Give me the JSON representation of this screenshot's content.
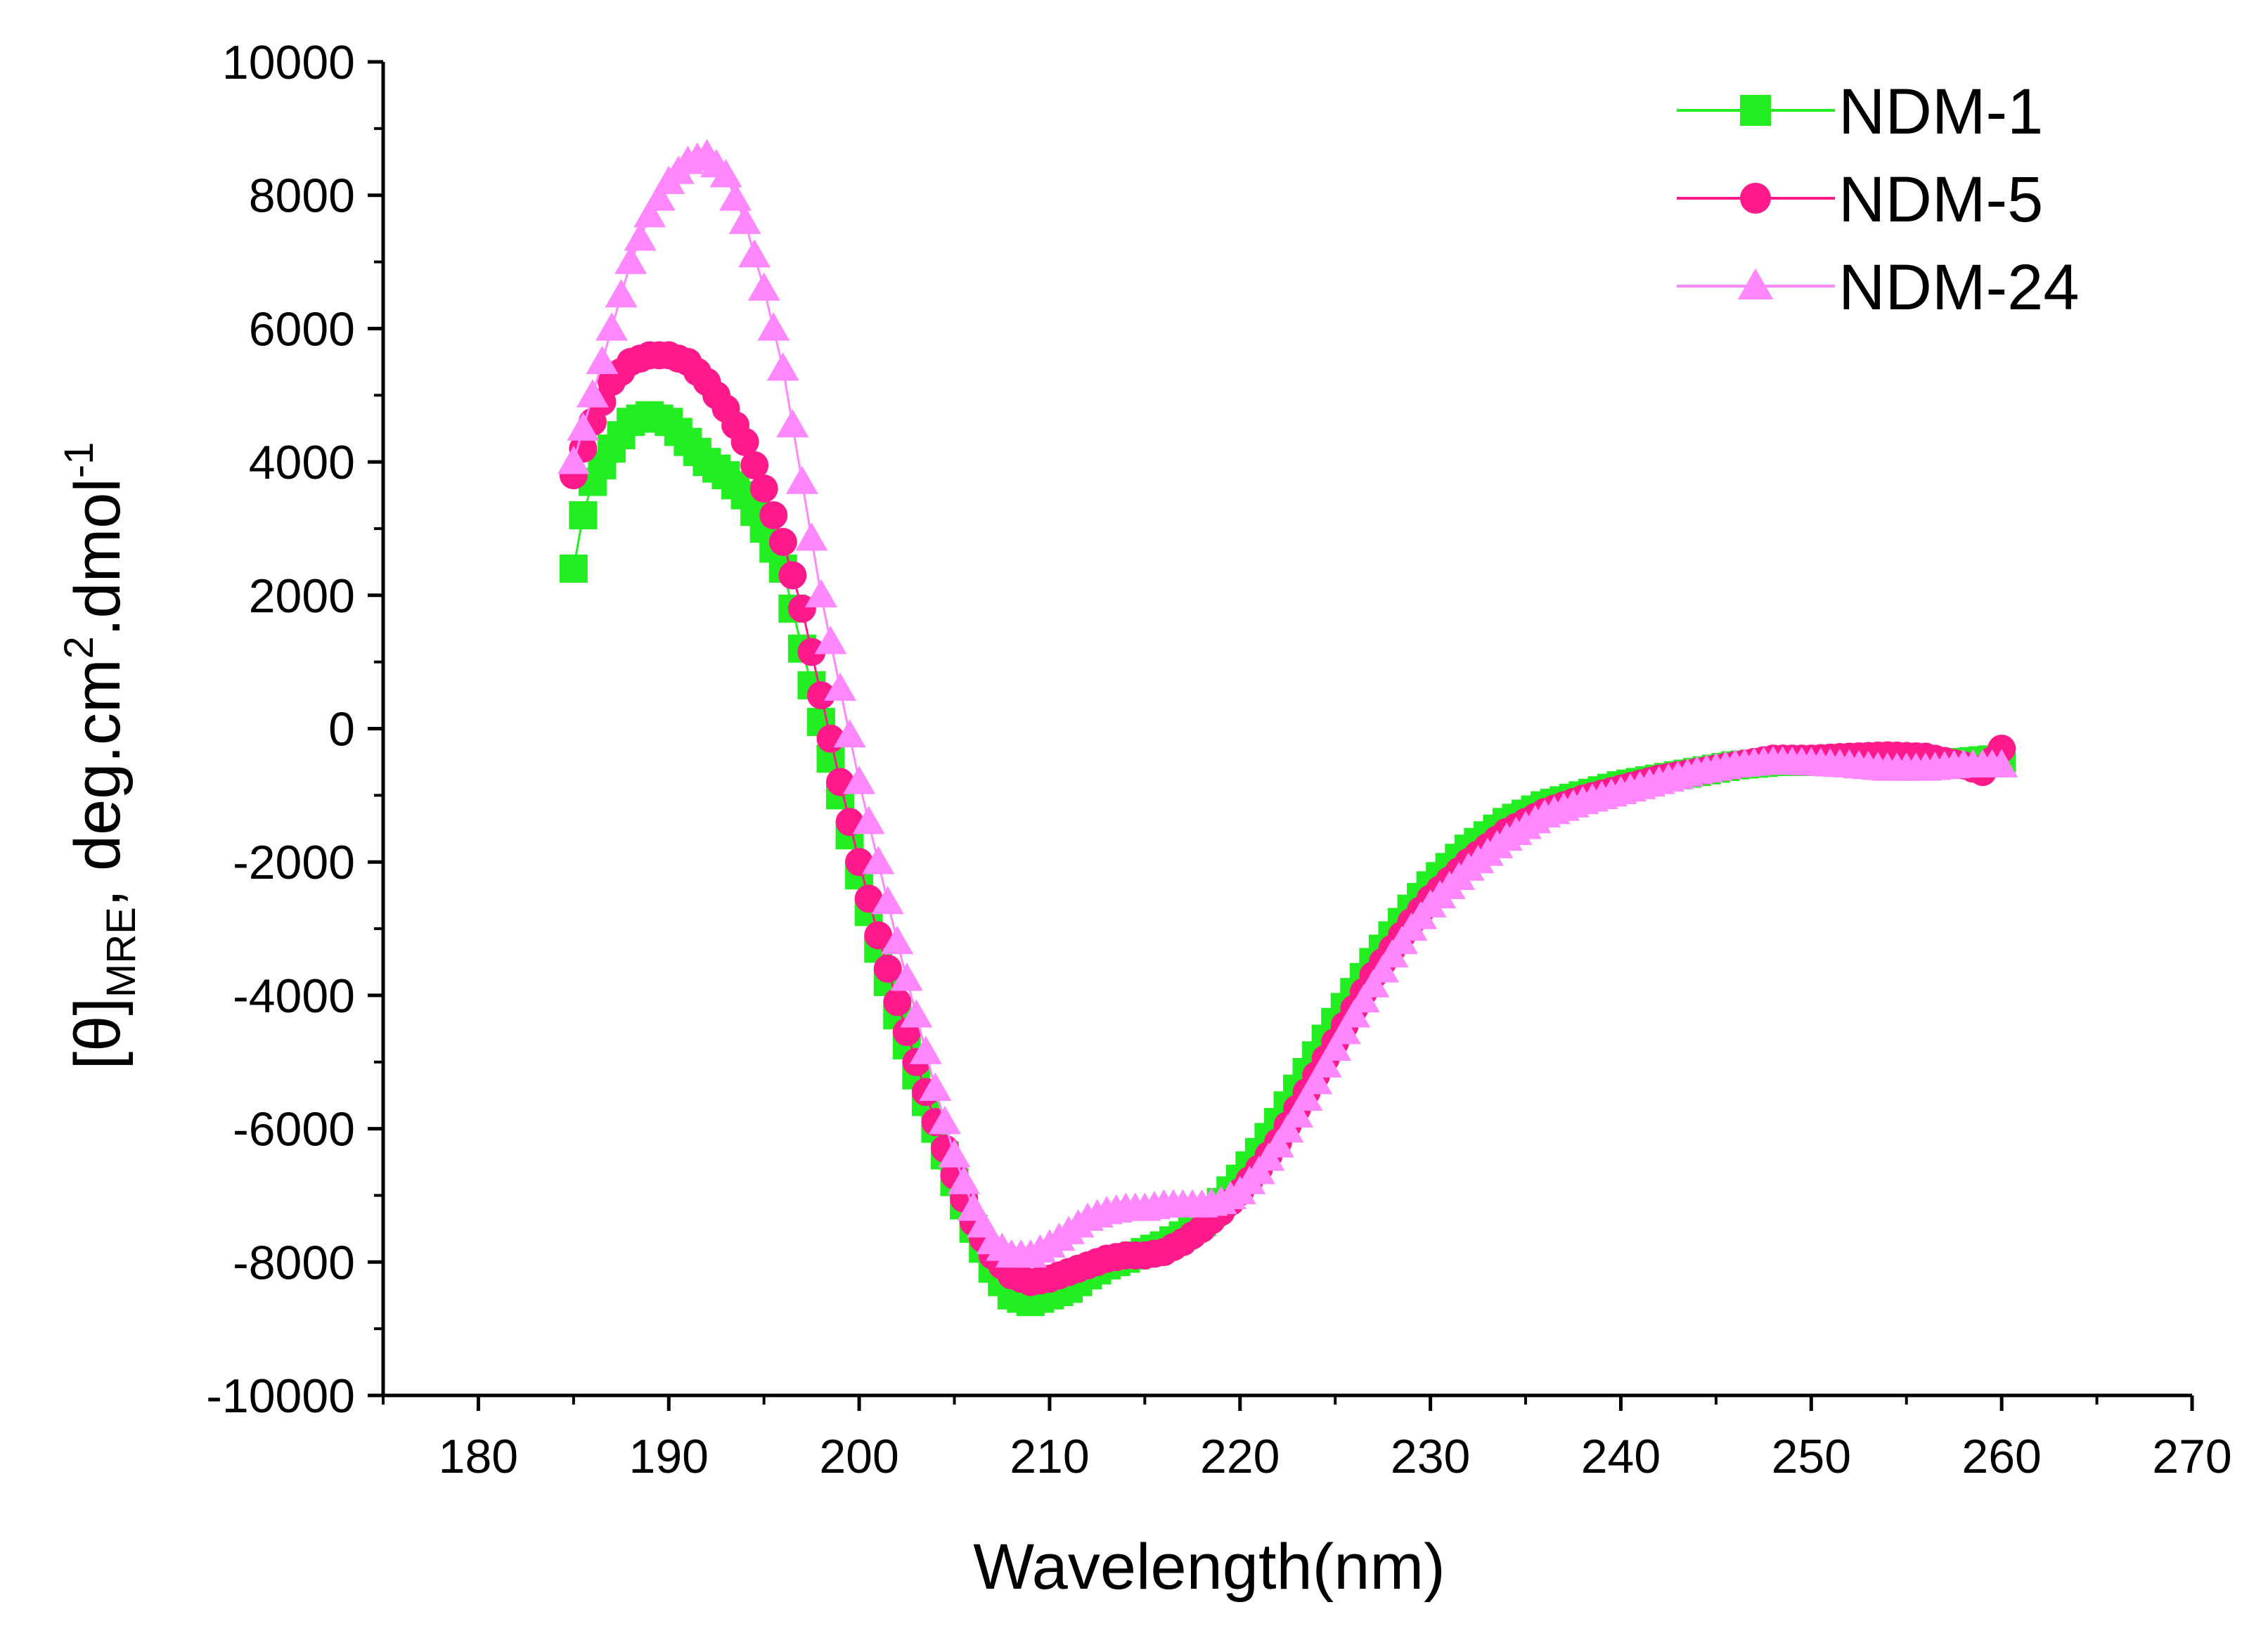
{
  "chart_data": {
    "type": "scatter",
    "title": "",
    "xlabel": "Wavelength(nm)",
    "ylabel": {
      "open": "[θ]",
      "sub": "MRE",
      "mid1": ", deg.cm",
      "sup1": "2",
      "mid2": ".dmol",
      "sup2": "-1"
    },
    "xlim": [
      175,
      270
    ],
    "ylim": [
      -10000,
      10000
    ],
    "xticks": [
      180,
      190,
      200,
      210,
      220,
      230,
      240,
      250,
      260,
      270
    ],
    "yticks": [
      -10000,
      -8000,
      -6000,
      -4000,
      -2000,
      0,
      2000,
      4000,
      6000,
      8000,
      10000
    ],
    "xtick_labels": [
      "180",
      "190",
      "200",
      "210",
      "220",
      "230",
      "240",
      "250",
      "260",
      "270"
    ],
    "ytick_labels": [
      "-10000",
      "-8000",
      "-6000",
      "-4000",
      "-2000",
      "0",
      "2000",
      "4000",
      "6000",
      "8000",
      "10000"
    ],
    "x_step": 0.5,
    "legend_position": "top-right",
    "series": [
      {
        "name": "NDM-1",
        "color": "#22ee22",
        "marker": "square",
        "anchors": [
          [
            185,
            2400
          ],
          [
            185.5,
            3200
          ],
          [
            186,
            3700
          ],
          [
            187,
            4200
          ],
          [
            188,
            4600
          ],
          [
            189,
            4700
          ],
          [
            190,
            4600
          ],
          [
            191,
            4300
          ],
          [
            192,
            4000
          ],
          [
            193,
            3800
          ],
          [
            194,
            3500
          ],
          [
            195,
            3000
          ],
          [
            196,
            2400
          ],
          [
            197,
            1200
          ],
          [
            198,
            100
          ],
          [
            199,
            -1000
          ],
          [
            200,
            -2200
          ],
          [
            201,
            -3300
          ],
          [
            202,
            -4300
          ],
          [
            203,
            -5200
          ],
          [
            204,
            -6000
          ],
          [
            205,
            -6800
          ],
          [
            206,
            -7500
          ],
          [
            207,
            -8100
          ],
          [
            208,
            -8500
          ],
          [
            209,
            -8600
          ],
          [
            210,
            -8500
          ],
          [
            211,
            -8400
          ],
          [
            212,
            -8200
          ],
          [
            213,
            -8050
          ],
          [
            214,
            -7950
          ],
          [
            215,
            -7850
          ],
          [
            216,
            -7750
          ],
          [
            217,
            -7600
          ],
          [
            218,
            -7400
          ],
          [
            219,
            -7100
          ],
          [
            220,
            -6750
          ],
          [
            221,
            -6350
          ],
          [
            222,
            -5900
          ],
          [
            223,
            -5400
          ],
          [
            224,
            -4900
          ],
          [
            225,
            -4400
          ],
          [
            226,
            -3950
          ],
          [
            227,
            -3500
          ],
          [
            228,
            -3100
          ],
          [
            229,
            -2700
          ],
          [
            230,
            -2350
          ],
          [
            232,
            -1800
          ],
          [
            234,
            -1400
          ],
          [
            236,
            -1150
          ],
          [
            238,
            -1000
          ],
          [
            240,
            -850
          ],
          [
            242,
            -750
          ],
          [
            244,
            -650
          ],
          [
            246,
            -550
          ],
          [
            248,
            -500
          ],
          [
            250,
            -500
          ],
          [
            252,
            -500
          ],
          [
            254,
            -520
          ],
          [
            256,
            -520
          ],
          [
            258,
            -500
          ],
          [
            260,
            -450
          ]
        ]
      },
      {
        "name": "NDM-5",
        "color": "#ff1a8c",
        "marker": "circle",
        "anchors": [
          [
            185,
            3800
          ],
          [
            186,
            4600
          ],
          [
            187,
            5200
          ],
          [
            188,
            5500
          ],
          [
            189,
            5600
          ],
          [
            190,
            5600
          ],
          [
            191,
            5500
          ],
          [
            192,
            5200
          ],
          [
            193,
            4800
          ],
          [
            194,
            4300
          ],
          [
            195,
            3600
          ],
          [
            196,
            2800
          ],
          [
            197,
            1800
          ],
          [
            198,
            500
          ],
          [
            199,
            -800
          ],
          [
            200,
            -2000
          ],
          [
            201,
            -3100
          ],
          [
            202,
            -4100
          ],
          [
            203,
            -5000
          ],
          [
            204,
            -5900
          ],
          [
            205,
            -6700
          ],
          [
            206,
            -7400
          ],
          [
            207,
            -7900
          ],
          [
            208,
            -8200
          ],
          [
            209,
            -8300
          ],
          [
            210,
            -8250
          ],
          [
            211,
            -8150
          ],
          [
            212,
            -8050
          ],
          [
            213,
            -7950
          ],
          [
            214,
            -7900
          ],
          [
            215,
            -7900
          ],
          [
            216,
            -7850
          ],
          [
            217,
            -7700
          ],
          [
            218,
            -7500
          ],
          [
            219,
            -7250
          ],
          [
            220,
            -6950
          ],
          [
            221,
            -6600
          ],
          [
            222,
            -6200
          ],
          [
            223,
            -5700
          ],
          [
            224,
            -5200
          ],
          [
            225,
            -4700
          ],
          [
            226,
            -4200
          ],
          [
            227,
            -3700
          ],
          [
            228,
            -3300
          ],
          [
            229,
            -2900
          ],
          [
            230,
            -2550
          ],
          [
            232,
            -2000
          ],
          [
            234,
            -1550
          ],
          [
            236,
            -1250
          ],
          [
            238,
            -1050
          ],
          [
            240,
            -900
          ],
          [
            242,
            -750
          ],
          [
            244,
            -650
          ],
          [
            246,
            -550
          ],
          [
            248,
            -450
          ],
          [
            250,
            -450
          ],
          [
            252,
            -420
          ],
          [
            254,
            -400
          ],
          [
            256,
            -420
          ],
          [
            258,
            -550
          ],
          [
            259,
            -650
          ],
          [
            260,
            -300
          ]
        ]
      },
      {
        "name": "NDM-24",
        "color": "#ff88ff",
        "marker": "triangle",
        "anchors": [
          [
            185,
            4000
          ],
          [
            186,
            5000
          ],
          [
            187,
            6000
          ],
          [
            188,
            7000
          ],
          [
            189,
            7700
          ],
          [
            190,
            8200
          ],
          [
            191,
            8500
          ],
          [
            192,
            8600
          ],
          [
            193,
            8300
          ],
          [
            194,
            7600
          ],
          [
            195,
            6600
          ],
          [
            196,
            5400
          ],
          [
            197,
            3700
          ],
          [
            198,
            2000
          ],
          [
            199,
            600
          ],
          [
            200,
            -800
          ],
          [
            201,
            -2000
          ],
          [
            202,
            -3200
          ],
          [
            203,
            -4300
          ],
          [
            204,
            -5400
          ],
          [
            205,
            -6400
          ],
          [
            206,
            -7200
          ],
          [
            207,
            -7700
          ],
          [
            208,
            -7900
          ],
          [
            209,
            -7900
          ],
          [
            210,
            -7750
          ],
          [
            211,
            -7550
          ],
          [
            212,
            -7350
          ],
          [
            213,
            -7250
          ],
          [
            214,
            -7200
          ],
          [
            215,
            -7200
          ],
          [
            216,
            -7150
          ],
          [
            217,
            -7150
          ],
          [
            218,
            -7150
          ],
          [
            219,
            -7100
          ],
          [
            220,
            -6950
          ],
          [
            221,
            -6650
          ],
          [
            222,
            -6250
          ],
          [
            223,
            -5800
          ],
          [
            224,
            -5300
          ],
          [
            225,
            -4800
          ],
          [
            226,
            -4300
          ],
          [
            227,
            -3850
          ],
          [
            228,
            -3400
          ],
          [
            229,
            -3000
          ],
          [
            230,
            -2650
          ],
          [
            232,
            -2100
          ],
          [
            234,
            -1650
          ],
          [
            236,
            -1300
          ],
          [
            238,
            -1100
          ],
          [
            240,
            -950
          ],
          [
            242,
            -800
          ],
          [
            244,
            -650
          ],
          [
            246,
            -550
          ],
          [
            248,
            -500
          ],
          [
            250,
            -520
          ],
          [
            252,
            -550
          ],
          [
            254,
            -600
          ],
          [
            256,
            -600
          ],
          [
            258,
            -550
          ],
          [
            260,
            -550
          ]
        ]
      }
    ]
  }
}
